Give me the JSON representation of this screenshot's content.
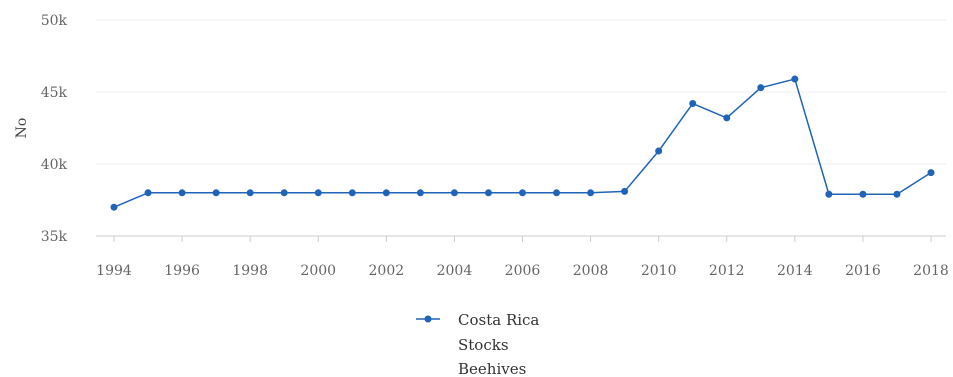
{
  "chart_data": {
    "type": "line",
    "ylabel": "No",
    "ylim": [
      35000,
      50000
    ],
    "y_ticks": [
      35000,
      40000,
      45000,
      50000
    ],
    "y_tick_labels": [
      "35k",
      "40k",
      "45k",
      "50k"
    ],
    "x_ticks": [
      "1994",
      "1996",
      "1998",
      "2000",
      "2002",
      "2004",
      "2006",
      "2008",
      "2010",
      "2012",
      "2014",
      "2016",
      "2018"
    ],
    "x": [
      1994,
      1995,
      1996,
      1997,
      1998,
      1999,
      2000,
      2001,
      2002,
      2003,
      2004,
      2005,
      2006,
      2007,
      2008,
      2009,
      2010,
      2011,
      2012,
      2013,
      2014,
      2015,
      2016,
      2017,
      2018
    ],
    "series": [
      {
        "name": "Costa Rica Stocks Beehives",
        "color": "#1f64b8",
        "values": [
          37000,
          38000,
          38000,
          38000,
          38000,
          38000,
          38000,
          38000,
          38000,
          38000,
          38000,
          38000,
          38000,
          38000,
          38000,
          38100,
          40900,
          44200,
          43200,
          45300,
          45900,
          37900,
          37900,
          37900,
          39400
        ]
      }
    ],
    "grid": "horizontal",
    "legend": {
      "position": "bottom",
      "lines": [
        "Costa Rica",
        "Stocks",
        "Beehives"
      ]
    }
  }
}
